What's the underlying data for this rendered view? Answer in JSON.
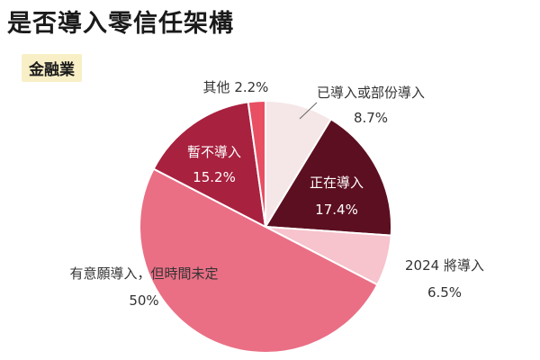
{
  "title": "是否導入零信任架構",
  "subtitle": "金融業",
  "chart_data": {
    "type": "pie",
    "slices": [
      {
        "label": "已導入或部份導入",
        "value": 8.7,
        "display": "8.7%",
        "color": "#f5e6e8"
      },
      {
        "label": "正在導入",
        "value": 17.4,
        "display": "17.4%",
        "color": "#5c0f20"
      },
      {
        "label": "2024 將導入",
        "value": 6.5,
        "display": "6.5%",
        "color": "#f7c3cc"
      },
      {
        "label": "有意願導入，但時間未定",
        "value": 50,
        "display": "50%",
        "color": "#ea6f85"
      },
      {
        "label": "暫不導入",
        "value": 15.2,
        "display": "15.2%",
        "color": "#a8213f"
      },
      {
        "label": "其他",
        "value": 2.2,
        "display": "其他 2.2%",
        "color": "#e84f62"
      }
    ]
  }
}
